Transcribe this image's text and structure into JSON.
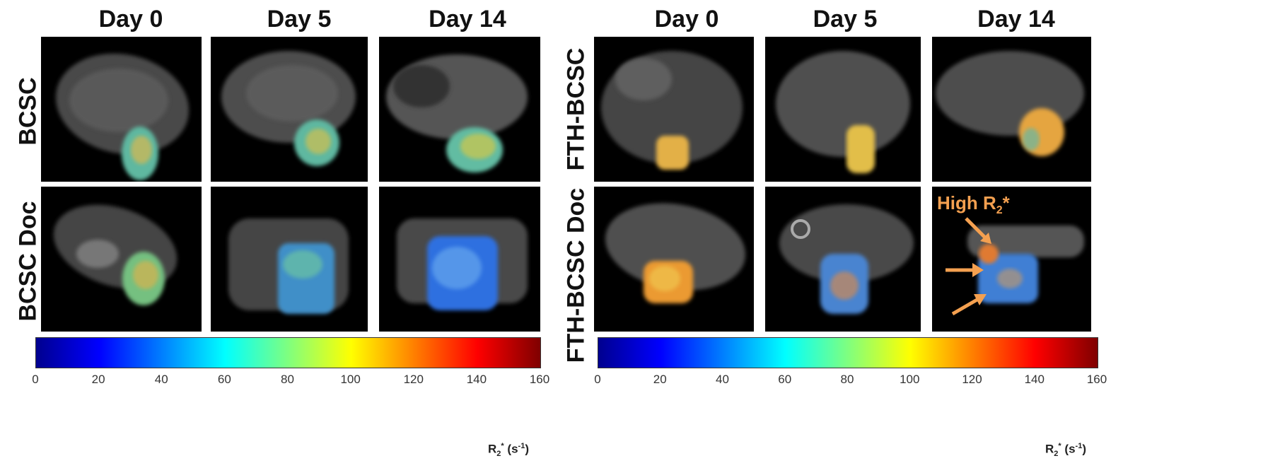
{
  "columns_left": [
    "Day 0",
    "Day 5",
    "Day 14"
  ],
  "columns_right": [
    "Day 0",
    "Day 5",
    "Day 14"
  ],
  "rows_left": [
    "BCSC",
    "BCSC Doc"
  ],
  "rows_right": [
    "FTH-BCSC",
    "FTH-BCSC Doc"
  ],
  "colorbar": {
    "ticks": [
      "0",
      "20",
      "40",
      "60",
      "80",
      "100",
      "120",
      "140",
      "160"
    ],
    "unit_base": "R",
    "unit_sub": "2",
    "unit_sup": "*",
    "unit_rest": " (s",
    "unit_exp": "-1",
    "unit_close": ")"
  },
  "annotation": {
    "text": "High R",
    "sub": "2",
    "star": "*",
    "color": "#f4a050"
  },
  "panels": [
    {
      "id": "bcsc-day0",
      "overlay": "teal-yellow"
    },
    {
      "id": "bcsc-day5",
      "overlay": "teal-yellow"
    },
    {
      "id": "bcsc-day14",
      "overlay": "teal-yellow"
    },
    {
      "id": "bcsc-doc-day0",
      "overlay": "teal-yellow"
    },
    {
      "id": "bcsc-doc-day5",
      "overlay": "blue-cyan"
    },
    {
      "id": "bcsc-doc-day14",
      "overlay": "blue"
    },
    {
      "id": "fth-bcsc-day0",
      "overlay": "yellow-orange"
    },
    {
      "id": "fth-bcsc-day5",
      "overlay": "yellow-orange"
    },
    {
      "id": "fth-bcsc-day14",
      "overlay": "yellow-orange"
    },
    {
      "id": "fth-bcsc-doc-day0",
      "overlay": "orange"
    },
    {
      "id": "fth-bcsc-doc-day5",
      "overlay": "blue-orange"
    },
    {
      "id": "fth-bcsc-doc-day14",
      "overlay": "blue-orange"
    }
  ]
}
